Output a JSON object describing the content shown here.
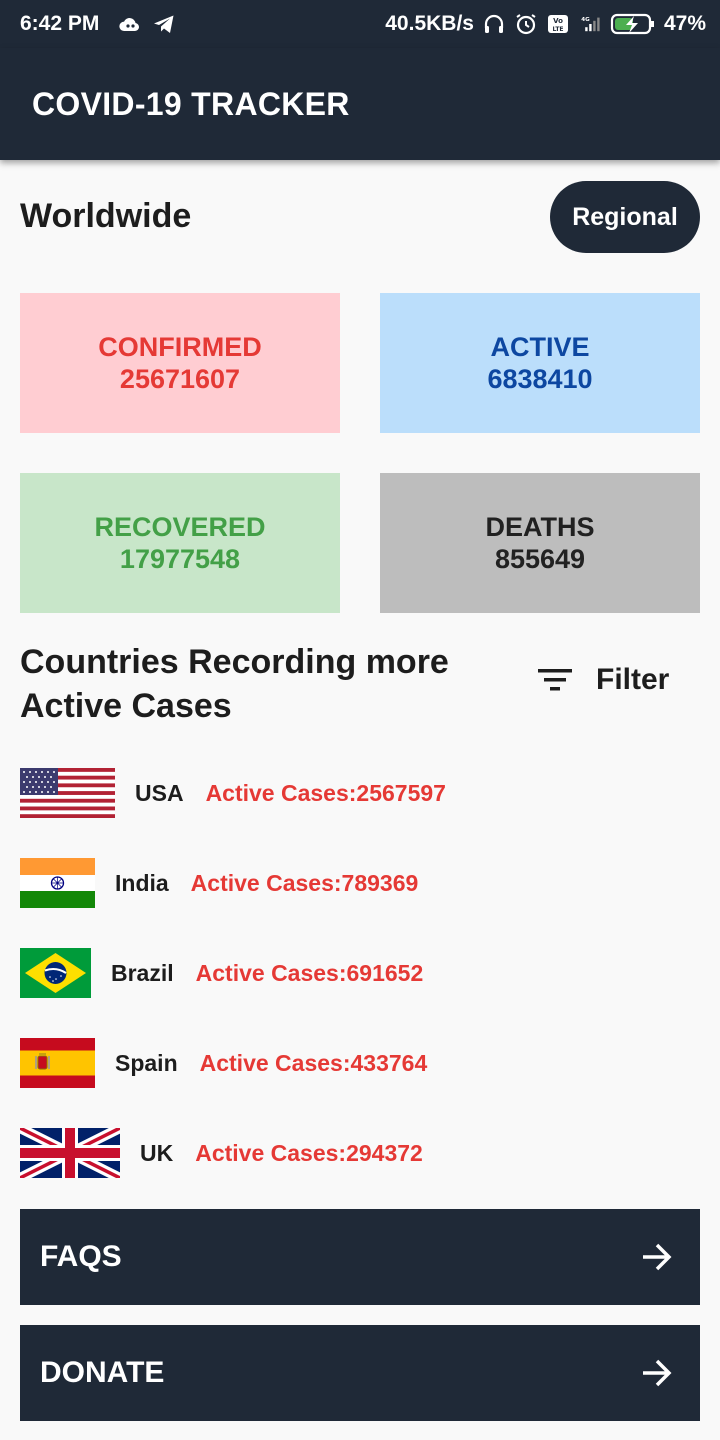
{
  "status_bar": {
    "time": "6:42 PM",
    "net_speed": "40.5KB/s",
    "battery": "47%",
    "icons": [
      "cloud-icon",
      "telegram-icon",
      "headset-icon",
      "alarm-icon",
      "volte-icon",
      "signal-icon",
      "battery-charging-icon"
    ]
  },
  "app_bar": {
    "title": "COVID-19 TRACKER"
  },
  "worldwide": {
    "title": "Worldwide",
    "regional_label": "Regional",
    "cards": {
      "confirmed": {
        "label": "CONFIRMED",
        "value": "25671607"
      },
      "active": {
        "label": "ACTIVE",
        "value": "6838410"
      },
      "recovered": {
        "label": "RECOVERED",
        "value": "17977548"
      },
      "deaths": {
        "label": "DEATHS",
        "value": "855649"
      }
    }
  },
  "countries": {
    "title_line1": "Countries Recording more",
    "title_line2": "Active Cases",
    "filter_label": "Filter",
    "items": [
      {
        "name": "USA",
        "active": "Active Cases:2567597",
        "flag": "us-flag-icon"
      },
      {
        "name": "India",
        "active": "Active Cases:789369",
        "flag": "india-flag-icon"
      },
      {
        "name": "Brazil",
        "active": "Active Cases:691652",
        "flag": "brazil-flag-icon"
      },
      {
        "name": "Spain",
        "active": "Active Cases:433764",
        "flag": "spain-flag-icon"
      },
      {
        "name": "UK",
        "active": "Active Cases:294372",
        "flag": "uk-flag-icon"
      }
    ]
  },
  "nav": {
    "faqs_label": "FAQS",
    "donate_label": "DONATE"
  },
  "colors": {
    "primary": "#1f2937",
    "confirmed_bg": "#ffcdd2",
    "confirmed_text": "#e53935",
    "active_bg": "#bbdefb",
    "active_text": "#0d47a1",
    "recovered_bg": "#c8e6c9",
    "recovered_text": "#43a047",
    "deaths_bg": "#bdbdbd",
    "deaths_text": "#212121"
  }
}
